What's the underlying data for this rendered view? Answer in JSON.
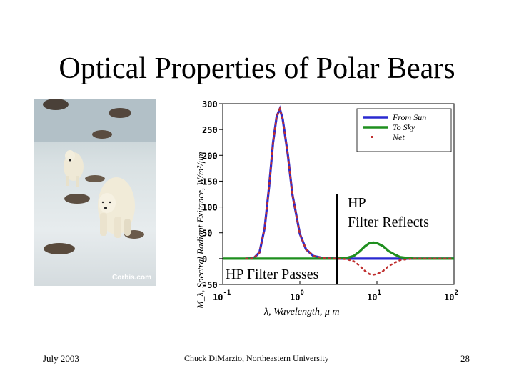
{
  "slide": {
    "title": "Optical Properties of Polar Bears",
    "date": "July 2003",
    "author": "Chuck DiMarzio, Northeastern University",
    "page": "28"
  },
  "photo": {
    "credit": "Corbis.com",
    "subject": "polar bears walking on ice"
  },
  "chart_data": {
    "type": "line",
    "ylabel": "M_λ, Spectral Radiant Exitance, W/m²/μm",
    "xlabel": "λ, Wavelength,  μ m",
    "xscale": "log",
    "xlim": [
      0.1,
      100
    ],
    "ylim": [
      -50,
      300
    ],
    "yticks": [
      "300",
      "250",
      "200",
      "150",
      "100",
      "50",
      "0",
      "-50"
    ],
    "xticks": [
      {
        "base": "10",
        "exp": "-1"
      },
      {
        "base": "10",
        "exp": "0"
      },
      {
        "base": "10",
        "exp": "1"
      },
      {
        "base": "10",
        "exp": "2"
      }
    ],
    "legend_position": "top-right",
    "series": [
      {
        "name": "From Sun",
        "color": "#2a2ad0",
        "style": "solid",
        "points": [
          [
            0.2,
            0
          ],
          [
            0.25,
            0.5
          ],
          [
            0.3,
            12
          ],
          [
            0.35,
            60
          ],
          [
            0.4,
            140
          ],
          [
            0.45,
            225
          ],
          [
            0.5,
            275
          ],
          [
            0.55,
            290
          ],
          [
            0.6,
            270
          ],
          [
            0.7,
            200
          ],
          [
            0.8,
            125
          ],
          [
            1.0,
            48
          ],
          [
            1.2,
            18
          ],
          [
            1.5,
            5
          ],
          [
            2,
            1
          ],
          [
            3,
            0
          ],
          [
            100,
            0
          ]
        ]
      },
      {
        "name": "To Sky",
        "color": "#1f8f1f",
        "style": "solid",
        "points": [
          [
            0.1,
            0
          ],
          [
            3,
            0
          ],
          [
            4,
            1
          ],
          [
            5,
            5
          ],
          [
            6,
            14
          ],
          [
            7,
            24
          ],
          [
            8,
            30
          ],
          [
            9,
            31
          ],
          [
            10,
            30
          ],
          [
            12,
            24
          ],
          [
            14,
            15
          ],
          [
            17,
            8
          ],
          [
            20,
            3
          ],
          [
            25,
            1
          ],
          [
            30,
            0
          ],
          [
            100,
            0
          ]
        ]
      },
      {
        "name": "Net",
        "color": "#c03030",
        "style": "dotted",
        "points": [
          [
            0.2,
            0
          ],
          [
            0.25,
            0.5
          ],
          [
            0.3,
            12
          ],
          [
            0.35,
            60
          ],
          [
            0.4,
            140
          ],
          [
            0.45,
            225
          ],
          [
            0.5,
            275
          ],
          [
            0.55,
            290
          ],
          [
            0.6,
            270
          ],
          [
            0.7,
            200
          ],
          [
            0.8,
            125
          ],
          [
            1.0,
            48
          ],
          [
            1.2,
            18
          ],
          [
            1.5,
            5
          ],
          [
            2,
            1
          ],
          [
            3,
            0
          ],
          [
            4,
            -1
          ],
          [
            5,
            -5
          ],
          [
            6,
            -14
          ],
          [
            7,
            -24
          ],
          [
            8,
            -30
          ],
          [
            9,
            -31
          ],
          [
            10,
            -30
          ],
          [
            12,
            -24
          ],
          [
            14,
            -15
          ],
          [
            17,
            -8
          ],
          [
            20,
            -3
          ],
          [
            25,
            -1
          ],
          [
            30,
            0
          ],
          [
            100,
            0
          ]
        ]
      }
    ],
    "annotations": {
      "divider_at_x": 3,
      "passes": "HP Filter Passes",
      "reflects_line1": "HP",
      "reflects_line2": "Filter Reflects"
    }
  }
}
